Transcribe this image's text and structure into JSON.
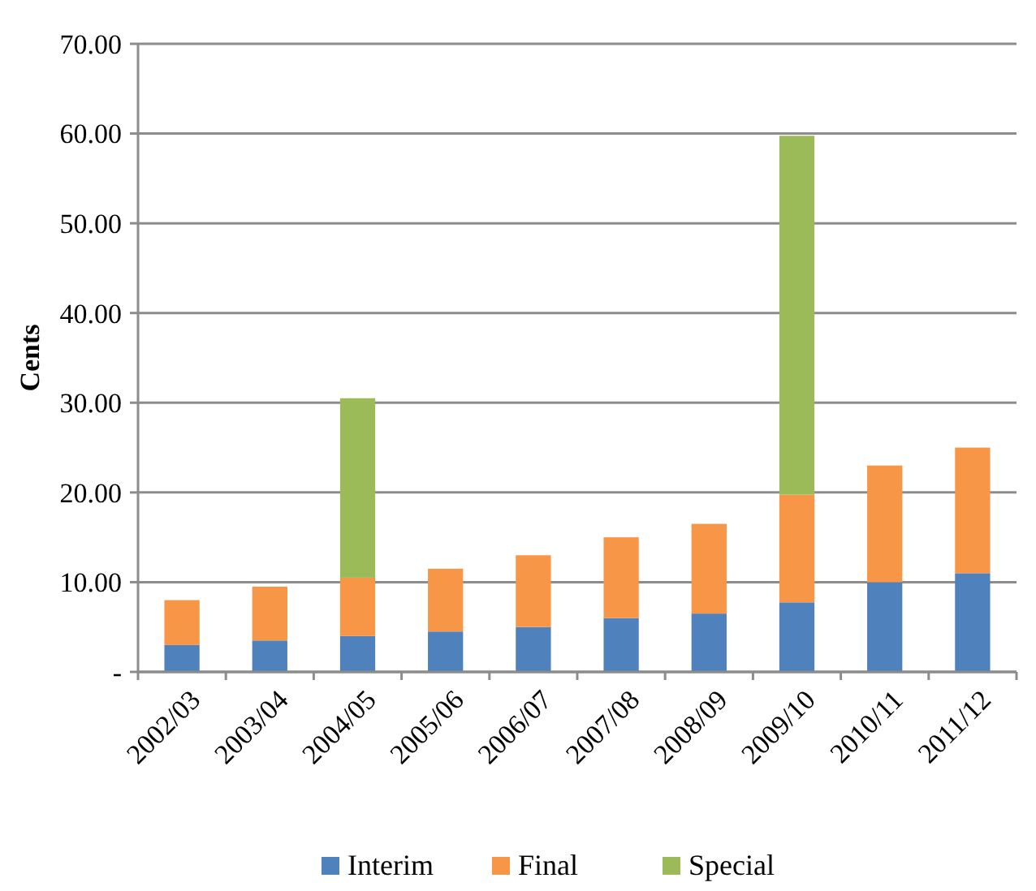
{
  "chart_data": {
    "type": "bar",
    "stacked": true,
    "ylabel": "Cents",
    "categories": [
      "2002/03",
      "2003/04",
      "2004/05",
      "2005/06",
      "2006/07",
      "2007/08",
      "2008/09",
      "2009/10",
      "2010/11",
      "2011/12"
    ],
    "series": [
      {
        "name": "Interim",
        "color": "#4f81bd",
        "values": [
          3,
          3.5,
          4,
          4.5,
          5,
          6,
          6.5,
          7.75,
          10,
          11
        ]
      },
      {
        "name": "Final",
        "color": "#f79646",
        "values": [
          5,
          6,
          6.5,
          7,
          8,
          9,
          10,
          12,
          13,
          14
        ]
      },
      {
        "name": "Special",
        "color": "#9bbb59",
        "values": [
          null,
          null,
          20,
          null,
          null,
          null,
          null,
          40,
          null,
          null
        ]
      }
    ],
    "ylim": [
      0,
      70
    ],
    "yticks": [
      {
        "value": 0,
        "label": "-"
      },
      {
        "value": 10,
        "label": "10.00"
      },
      {
        "value": 20,
        "label": "20.00"
      },
      {
        "value": 30,
        "label": "30.00"
      },
      {
        "value": 40,
        "label": "40.00"
      },
      {
        "value": 50,
        "label": "50.00"
      },
      {
        "value": 60,
        "label": "60.00"
      },
      {
        "value": 70,
        "label": "70.00"
      }
    ],
    "grid": "y",
    "legend": "bottom"
  }
}
